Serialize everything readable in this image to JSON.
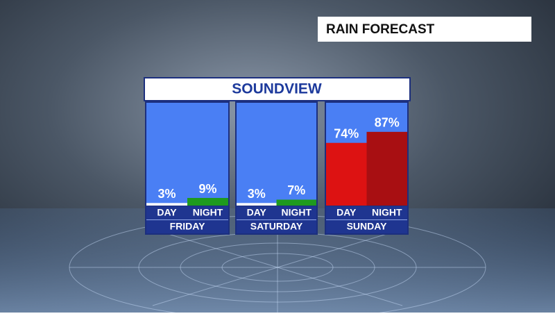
{
  "header": {
    "title": "RAIN FORECAST"
  },
  "chart_data": {
    "type": "bar",
    "title": "SOUNDVIEW",
    "groups": [
      {
        "name": "FRIDAY",
        "categories": [
          "DAY",
          "NIGHT"
        ],
        "values": [
          3,
          9
        ],
        "value_labels": [
          "3%",
          "9%"
        ],
        "colors": [
          "#ffffff",
          "#1e9a1e"
        ]
      },
      {
        "name": "SATURDAY",
        "categories": [
          "DAY",
          "NIGHT"
        ],
        "values": [
          3,
          7
        ],
        "value_labels": [
          "3%",
          "7%"
        ],
        "colors": [
          "#ffffff",
          "#1e9a1e"
        ]
      },
      {
        "name": "SUNDAY",
        "categories": [
          "DAY",
          "NIGHT"
        ],
        "values": [
          74,
          87
        ],
        "value_labels": [
          "74%",
          "87%"
        ],
        "colors": [
          "#dd1212",
          "#a80f12"
        ]
      }
    ]
  }
}
